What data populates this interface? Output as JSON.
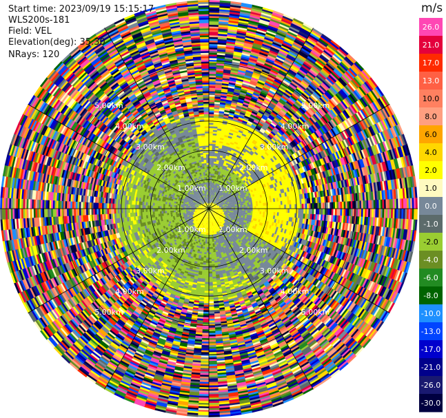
{
  "header": {
    "start_time": "Start time: 2023/09/19 15:15:17",
    "instrument": "WLS200s-181",
    "field": "Field: VEL",
    "elevation": "Elevation(deg): 35.30",
    "nrays": "NRays: 120"
  },
  "chart_data": {
    "type": "heatmap",
    "projection": "polar-ppi",
    "field": "VEL",
    "elevation_deg": 35.3,
    "n_rays": 120,
    "range_rings_km": [
      1.0,
      2.0,
      3.0,
      4.0,
      5.0
    ],
    "ring_labels": [
      "1.00km",
      "2.00km",
      "3.00km",
      "4.00km",
      "5.00km"
    ],
    "max_range_km": 7.15,
    "colorbar": {
      "unit": "m/s",
      "ticks": [
        26.0,
        21.0,
        17.0,
        13.0,
        10.0,
        8.0,
        6.0,
        4.0,
        2.0,
        1.0,
        0.0,
        -1.0,
        -2.0,
        -4.0,
        -6.0,
        -8.0,
        -10.0,
        -13.0,
        -17.0,
        -21.0,
        -26.0,
        -30.0
      ],
      "tick_labels": [
        "26.0",
        "21.0",
        "17.0",
        "13.0",
        "10.0",
        "8.0",
        "6.0",
        "4.0",
        "2.0",
        "1.0",
        "0.0",
        "-1.0",
        "-2.0",
        "-4.0",
        "-6.0",
        "-8.0",
        "-10.0",
        "-13.0",
        "-17.0",
        "-21.0",
        "-26.0",
        "-30.0"
      ],
      "colors": [
        "#ff47b4",
        "#e4003c",
        "#ff2a00",
        "#ff6044",
        "#ff8060",
        "#ff9f80",
        "#ffa500",
        "#ffd700",
        "#ffff00",
        "#fffac0",
        "#778899",
        "#5c6b6b",
        "#9acd32",
        "#6b8e23",
        "#228b22",
        "#006400",
        "#1e90ff",
        "#0044ff",
        "#0000cd",
        "#00008b",
        "#191970",
        "#000040"
      ]
    },
    "pattern": {
      "inner_gray_km": 0.9,
      "yellow_core_center_km": [
        0.0,
        -0.35
      ],
      "green_ring_km": [
        0.9,
        2.4
      ],
      "yellow_arc_km": [
        1.5,
        3.1
      ],
      "yellow_arc_azimuth_deg": [
        -10,
        120
      ],
      "noise_begins_km": 3.2
    }
  }
}
